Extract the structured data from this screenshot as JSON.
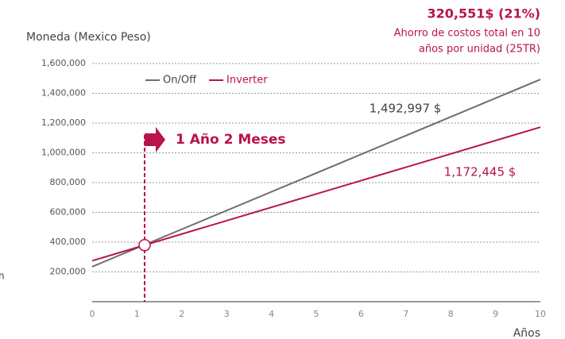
{
  "chart_data": {
    "type": "line",
    "headline": "320,551$ (21%)",
    "subtitle": [
      "Ahorro de costos total en 10",
      "años por unidad (25TR)"
    ],
    "ylabel": "Moneda (Mexico Peso)",
    "xlabel": "Años",
    "x": [
      0,
      10
    ],
    "series": [
      {
        "name": "On/Off",
        "color": "#6e6e6e",
        "values": [
          235000,
          1492997
        ],
        "end_label": "1,492,997 $"
      },
      {
        "name": "Inverter",
        "color": "#b8134b",
        "values": [
          275000,
          1172445
        ],
        "end_label": "1,172,445 $"
      }
    ],
    "breakeven": {
      "x": 1.17,
      "y": 380000,
      "label": "1 Año 2 Meses"
    },
    "side_text": "h",
    "xlim": [
      0,
      10
    ],
    "xticks": [
      0,
      1,
      2,
      3,
      4,
      5,
      6,
      7,
      8,
      9,
      10
    ],
    "ylim": [
      0,
      1600000
    ],
    "yticks": [
      {
        "value": 200000,
        "label": "200,000"
      },
      {
        "value": 400000,
        "label": "400,000"
      },
      {
        "value": 600000,
        "label": "600,000"
      },
      {
        "value": 800000,
        "label": "800,000"
      },
      {
        "value": 1000000,
        "label": "1,000,000"
      },
      {
        "value": 1200000,
        "label": "1,200,000"
      },
      {
        "value": 1400000,
        "label": "1,400,000"
      },
      {
        "value": 1600000,
        "label": "1,600,000"
      }
    ],
    "grid": true
  }
}
